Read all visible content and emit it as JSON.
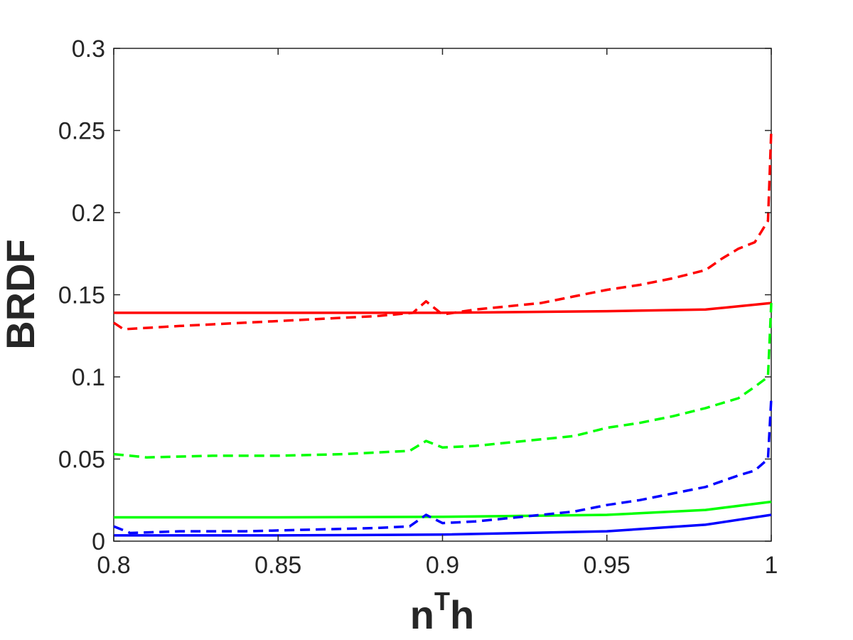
{
  "chart_data": {
    "type": "line",
    "title": "",
    "xlabel": {
      "base": "n",
      "superscript": "T",
      "tail": "h"
    },
    "ylabel": "BRDF",
    "xlim": [
      0.8,
      1.0
    ],
    "ylim": [
      0,
      0.3
    ],
    "xticks": [
      0.8,
      0.85,
      0.9,
      0.95,
      1.0
    ],
    "xtick_labels": [
      "0.8",
      "0.85",
      "0.9",
      "0.95",
      "1"
    ],
    "yticks": [
      0,
      0.05,
      0.1,
      0.15,
      0.2,
      0.25,
      0.3
    ],
    "ytick_labels": [
      "0",
      "0.05",
      "0.1",
      "0.15",
      "0.2",
      "0.25",
      "0.3"
    ],
    "grid": false,
    "legend": "none",
    "series": [
      {
        "color": "#ff0000",
        "style": "solid",
        "x": [
          0.8,
          0.85,
          0.9,
          0.95,
          0.98,
          1.0
        ],
        "y": [
          0.139,
          0.139,
          0.139,
          0.14,
          0.141,
          0.145
        ]
      },
      {
        "color": "#ff0000",
        "style": "dashed",
        "x": [
          0.8,
          0.803,
          0.82,
          0.84,
          0.86,
          0.88,
          0.891,
          0.895,
          0.9,
          0.91,
          0.93,
          0.945,
          0.95,
          0.96,
          0.97,
          0.98,
          0.985,
          0.99,
          0.995,
          0.999,
          1.0
        ],
        "y": [
          0.133,
          0.129,
          0.131,
          0.133,
          0.135,
          0.137,
          0.139,
          0.146,
          0.138,
          0.141,
          0.145,
          0.151,
          0.153,
          0.156,
          0.16,
          0.165,
          0.172,
          0.178,
          0.182,
          0.195,
          0.25
        ]
      },
      {
        "color": "#00ff00",
        "style": "solid",
        "x": [
          0.8,
          0.85,
          0.9,
          0.95,
          0.98,
          1.0
        ],
        "y": [
          0.0145,
          0.0145,
          0.0148,
          0.016,
          0.019,
          0.024
        ]
      },
      {
        "color": "#00ff00",
        "style": "dashed",
        "x": [
          0.8,
          0.81,
          0.83,
          0.85,
          0.87,
          0.89,
          0.895,
          0.9,
          0.91,
          0.93,
          0.94,
          0.95,
          0.96,
          0.97,
          0.98,
          0.99,
          0.995,
          0.999,
          1.0
        ],
        "y": [
          0.053,
          0.051,
          0.052,
          0.052,
          0.053,
          0.055,
          0.061,
          0.057,
          0.058,
          0.062,
          0.064,
          0.069,
          0.072,
          0.076,
          0.081,
          0.087,
          0.094,
          0.1,
          0.145
        ]
      },
      {
        "color": "#0000ff",
        "style": "solid",
        "x": [
          0.8,
          0.85,
          0.9,
          0.95,
          0.98,
          1.0
        ],
        "y": [
          0.0035,
          0.0035,
          0.004,
          0.006,
          0.01,
          0.016
        ]
      },
      {
        "color": "#0000ff",
        "style": "dashed",
        "x": [
          0.8,
          0.805,
          0.82,
          0.84,
          0.86,
          0.88,
          0.89,
          0.895,
          0.9,
          0.91,
          0.92,
          0.93,
          0.94,
          0.95,
          0.96,
          0.97,
          0.98,
          0.99,
          0.995,
          0.999,
          1.0
        ],
        "y": [
          0.009,
          0.005,
          0.006,
          0.006,
          0.007,
          0.008,
          0.009,
          0.016,
          0.011,
          0.012,
          0.014,
          0.016,
          0.018,
          0.022,
          0.025,
          0.029,
          0.033,
          0.04,
          0.043,
          0.05,
          0.087
        ]
      }
    ]
  }
}
